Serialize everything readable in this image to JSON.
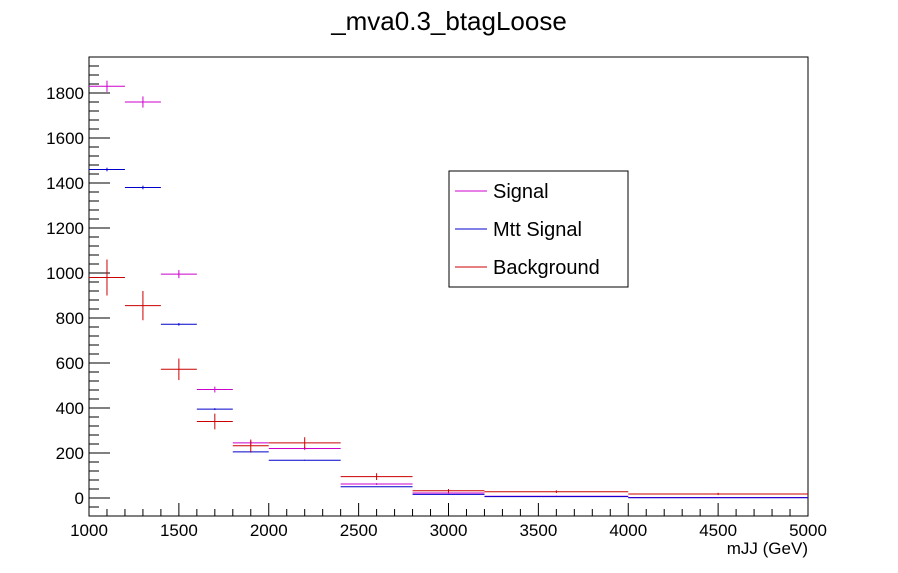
{
  "chart_data": {
    "type": "scatter",
    "title": "_mva0.3_btagLoose",
    "xlabel": "mJJ (GeV)",
    "ylabel": "",
    "xlim": [
      1000,
      5000
    ],
    "ylim": [
      -80,
      1960
    ],
    "x_ticks": [
      1000,
      1500,
      2000,
      2500,
      3000,
      3500,
      4000,
      4500,
      5000
    ],
    "y_ticks": [
      0,
      200,
      400,
      600,
      800,
      1000,
      1200,
      1400,
      1600,
      1800
    ],
    "grid": false,
    "legend_position": "center-right",
    "series": [
      {
        "name": "Signal",
        "color": "#cc00cc",
        "points": [
          {
            "xlo": 1000,
            "xhi": 1200,
            "y": 1830,
            "err": 25
          },
          {
            "xlo": 1200,
            "xhi": 1400,
            "y": 1760,
            "err": 25
          },
          {
            "xlo": 1400,
            "xhi": 1600,
            "y": 995,
            "err": 18
          },
          {
            "xlo": 1600,
            "xhi": 1800,
            "y": 482,
            "err": 13
          },
          {
            "xlo": 1800,
            "xhi": 2000,
            "y": 245,
            "err": 9
          },
          {
            "xlo": 2000,
            "xhi": 2400,
            "y": 220,
            "err": 7
          },
          {
            "xlo": 2400,
            "xhi": 2800,
            "y": 62,
            "err": 4
          },
          {
            "xlo": 2800,
            "xhi": 3200,
            "y": 22,
            "err": 3
          },
          {
            "xlo": 3200,
            "xhi": 4000,
            "y": 8,
            "err": 2
          },
          {
            "xlo": 4000,
            "xhi": 5000,
            "y": 2,
            "err": 1
          }
        ]
      },
      {
        "name": "Mtt Signal",
        "color": "#0000cc",
        "points": [
          {
            "xlo": 1000,
            "xhi": 1200,
            "y": 1460,
            "err": 8
          },
          {
            "xlo": 1200,
            "xhi": 1400,
            "y": 1380,
            "err": 8
          },
          {
            "xlo": 1400,
            "xhi": 1600,
            "y": 772,
            "err": 6
          },
          {
            "xlo": 1600,
            "xhi": 1800,
            "y": 395,
            "err": 4
          },
          {
            "xlo": 1800,
            "xhi": 2000,
            "y": 205,
            "err": 3
          },
          {
            "xlo": 2000,
            "xhi": 2400,
            "y": 168,
            "err": 2
          },
          {
            "xlo": 2400,
            "xhi": 2800,
            "y": 50,
            "err": 1
          },
          {
            "xlo": 2800,
            "xhi": 3200,
            "y": 16,
            "err": 1
          },
          {
            "xlo": 3200,
            "xhi": 4000,
            "y": 6,
            "err": 1
          },
          {
            "xlo": 4000,
            "xhi": 5000,
            "y": 1,
            "err": 0
          }
        ]
      },
      {
        "name": "Background",
        "color": "#cc0000",
        "points": [
          {
            "xlo": 1000,
            "xhi": 1200,
            "y": 980,
            "err": 80
          },
          {
            "xlo": 1200,
            "xhi": 1400,
            "y": 855,
            "err": 65
          },
          {
            "xlo": 1400,
            "xhi": 1600,
            "y": 572,
            "err": 48
          },
          {
            "xlo": 1600,
            "xhi": 1800,
            "y": 340,
            "err": 35
          },
          {
            "xlo": 1800,
            "xhi": 2000,
            "y": 232,
            "err": 28
          },
          {
            "xlo": 2000,
            "xhi": 2400,
            "y": 245,
            "err": 25
          },
          {
            "xlo": 2400,
            "xhi": 2800,
            "y": 95,
            "err": 15
          },
          {
            "xlo": 2800,
            "xhi": 3200,
            "y": 32,
            "err": 8
          },
          {
            "xlo": 3200,
            "xhi": 4000,
            "y": 28,
            "err": 6
          },
          {
            "xlo": 4000,
            "xhi": 5000,
            "y": 18,
            "err": 5
          }
        ]
      }
    ]
  }
}
